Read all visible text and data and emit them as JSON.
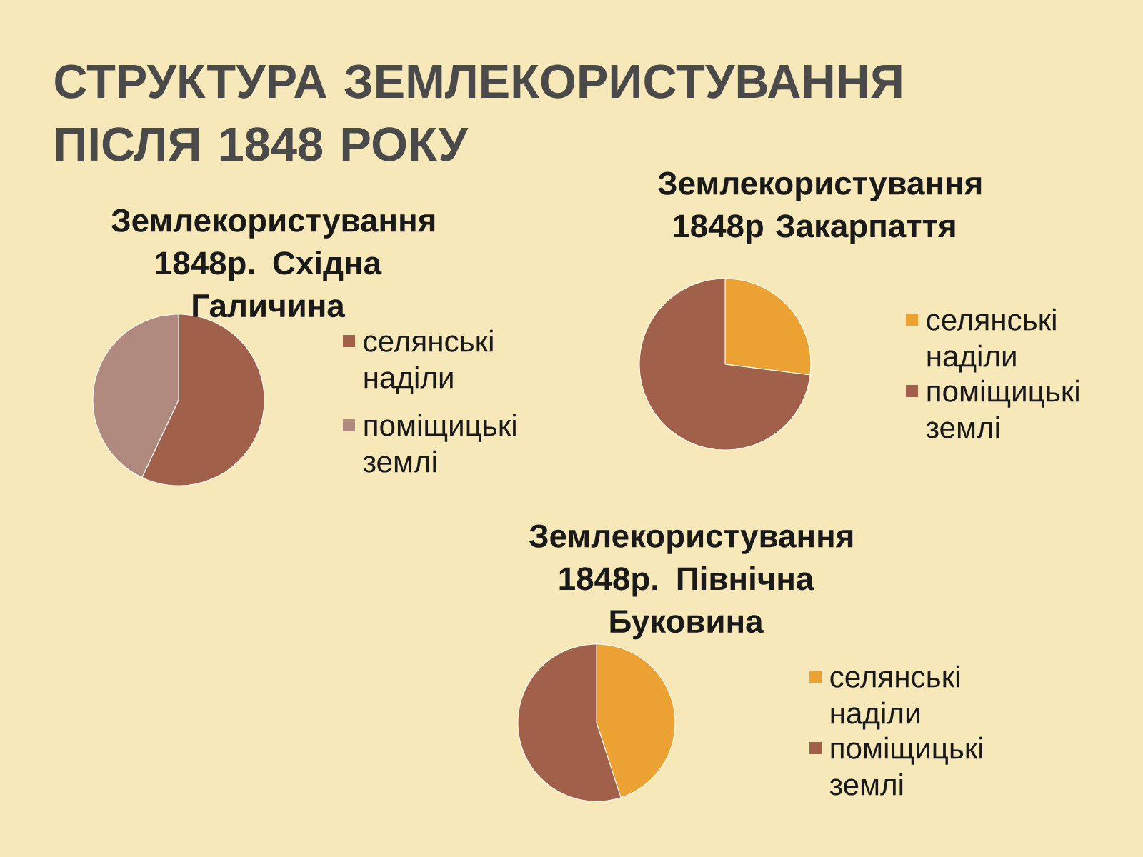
{
  "chart_data": [
    {
      "type": "other",
      "title": "СТРУКТУРА ЗЕМЛЕКОРИСТУВАННЯ ПІСЛЯ 1848 РОКУ"
    },
    {
      "type": "pie",
      "title": "Землекористування 1848р. Східна Галичина",
      "categories": [
        "селянські наділи",
        "поміщицькі землі"
      ],
      "values": [
        57,
        43
      ],
      "colors": [
        "#a0604a",
        "#b08a7e"
      ],
      "legend": "right"
    },
    {
      "type": "pie",
      "title": "Землекористування 1848р Закарпаття",
      "categories": [
        "селянські наділи",
        "поміщицькі землі"
      ],
      "values": [
        27,
        73
      ],
      "colors": [
        "#eba232",
        "#a0604a"
      ],
      "legend": "right"
    },
    {
      "type": "pie",
      "title": "Землекористування 1848р. Північна Буковина",
      "categories": [
        "селянські наділи",
        "поміщицькі землі"
      ],
      "values": [
        45,
        55
      ],
      "colors": [
        "#eba232",
        "#a0604a"
      ],
      "legend": "right"
    }
  ]
}
